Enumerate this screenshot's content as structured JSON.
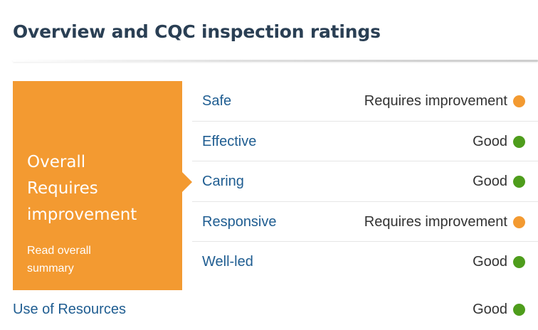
{
  "page": {
    "title": "Overview and CQC inspection ratings"
  },
  "overall": {
    "label": "Overall",
    "rating_line1": "Requires",
    "rating_line2": "improvement",
    "summary_link_line1": "Read overall",
    "summary_link_line2": "summary",
    "color": "#f39a31"
  },
  "ratings": [
    {
      "key": "Safe",
      "value": "Requires improvement",
      "status": "requires-improvement"
    },
    {
      "key": "Effective",
      "value": "Good",
      "status": "good"
    },
    {
      "key": "Caring",
      "value": "Good",
      "status": "good"
    },
    {
      "key": "Responsive",
      "value": "Requires improvement",
      "status": "requires-improvement"
    },
    {
      "key": "Well-led",
      "value": "Good",
      "status": "good"
    }
  ],
  "use_of_resources": {
    "key": "Use of Resources",
    "value": "Good",
    "status": "good"
  },
  "colors": {
    "good": "#4e9d1c",
    "requires_improvement": "#f39a31",
    "link": "#1f5d91",
    "title": "#2a3f54"
  },
  "icons": {
    "good": "green-dot-icon",
    "requires_improvement": "orange-dot-icon"
  }
}
